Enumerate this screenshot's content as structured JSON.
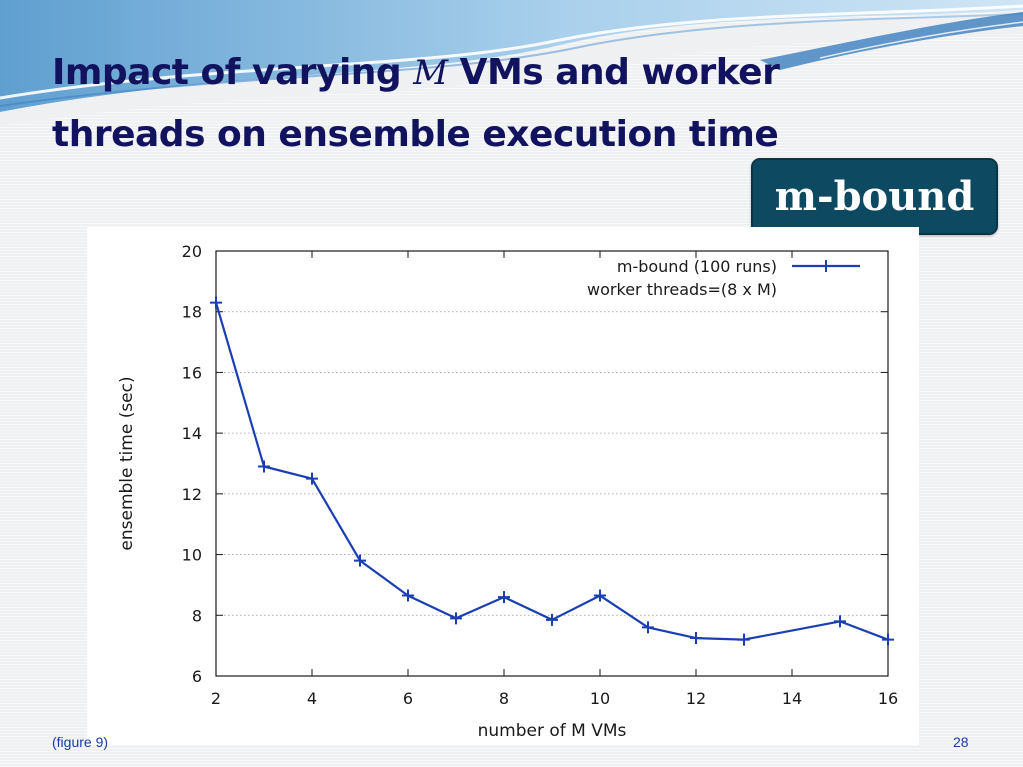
{
  "slide": {
    "title_before": "Impact of varying ",
    "title_symbol": "M",
    "title_after": " VMs and worker threads on ensemble execution time",
    "badge": "m-bound",
    "caption": "(figure 9)",
    "page_number": "28"
  },
  "colors": {
    "title": "#12135e",
    "badge_bg": "#0d4a62",
    "series": "#1a3fb3",
    "caption": "#1a3aa8"
  },
  "chart_data": {
    "type": "line",
    "xlabel": "number of M VMs",
    "ylabel": "ensemble time (sec)",
    "xlim": [
      2,
      16
    ],
    "ylim": [
      6,
      20
    ],
    "xticks": [
      2,
      4,
      6,
      8,
      10,
      12,
      14,
      16
    ],
    "yticks": [
      6,
      8,
      10,
      12,
      14,
      16,
      18,
      20
    ],
    "grid": true,
    "legend_position": "top-right",
    "legend_lines": [
      "m-bound (100 runs)",
      "worker threads=(8 x M)"
    ],
    "series": [
      {
        "marker": "plus",
        "x": [
          2,
          3,
          4,
          5,
          6,
          7,
          8,
          9,
          10,
          11,
          12,
          13,
          15,
          16
        ],
        "y": [
          18.3,
          12.9,
          12.5,
          9.8,
          8.65,
          7.9,
          8.6,
          7.85,
          8.65,
          7.6,
          7.25,
          7.2,
          7.8,
          7.2
        ]
      }
    ]
  }
}
